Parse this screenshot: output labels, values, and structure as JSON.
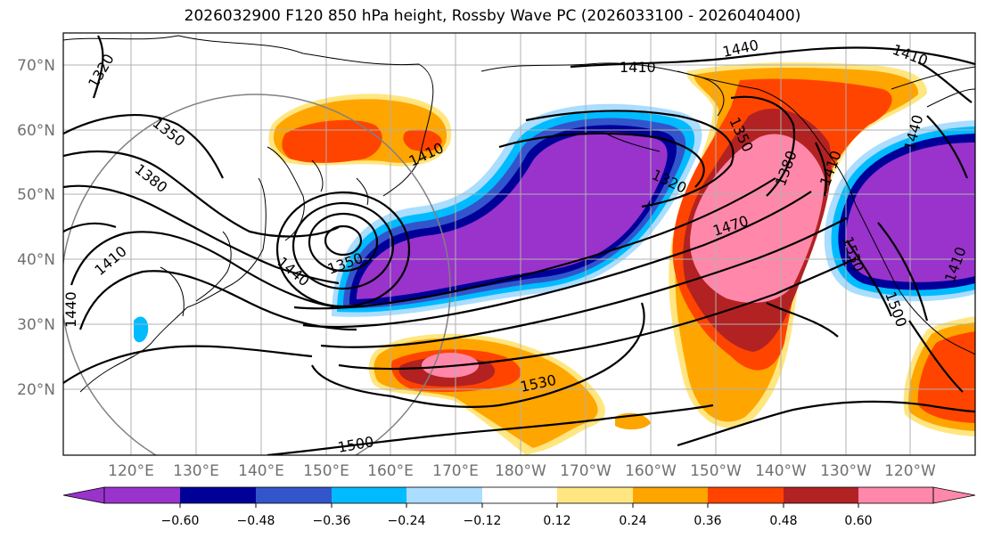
{
  "title": "2026032900 F120 850 hPa height, Rossby Wave PC (2026033100 - 2026040400)",
  "map": {
    "lon_labels": [
      "120°E",
      "130°E",
      "140°E",
      "150°E",
      "160°E",
      "170°E",
      "180°W",
      "170°W",
      "160°W",
      "150°W",
      "140°W",
      "130°W",
      "120°W"
    ],
    "lat_labels": [
      "70°N",
      "60°N",
      "50°N",
      "40°N",
      "30°N",
      "20°N"
    ],
    "contour_labels": [
      "1320",
      "1350",
      "1380",
      "1410",
      "1440",
      "1410",
      "1410",
      "1440",
      "1410",
      "1350",
      "1320",
      "1380",
      "1410",
      "1470",
      "1440",
      "1350",
      "1530",
      "1500",
      "1440",
      "1530",
      "1500",
      "1410"
    ]
  },
  "colorbar": {
    "ticks": [
      "−0.60",
      "−0.48",
      "−0.36",
      "−0.24",
      "−0.12",
      "0.12",
      "0.24",
      "0.36",
      "0.48",
      "0.60"
    ],
    "colors": [
      "#9933cc",
      "#000099",
      "#3355cc",
      "#00bbff",
      "#aaddff",
      "#ffffff",
      "#ffe680",
      "#ffa500",
      "#ff4400",
      "#b22222",
      "#ff88aa"
    ]
  }
}
